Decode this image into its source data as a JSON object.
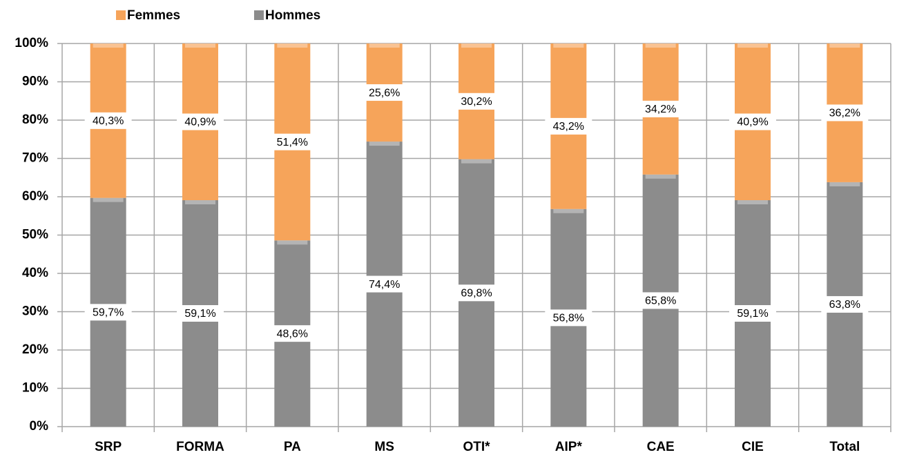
{
  "chart_data": {
    "type": "stacked_bar",
    "categories": [
      "SRP",
      "FORMA",
      "PA",
      "MS",
      "OTI*",
      "AIP*",
      "CAE",
      "CIE",
      "Total"
    ],
    "series": [
      {
        "name": "Hommes",
        "color": "#8c8c8c",
        "values": [
          59.7,
          59.1,
          48.6,
          74.4,
          69.8,
          56.8,
          65.8,
          59.1,
          63.8
        ],
        "value_labels": [
          "59,7%",
          "59,1%",
          "48,6%",
          "74,4%",
          "69,8%",
          "56,8%",
          "65,8%",
          "59,1%",
          "63,8%"
        ]
      },
      {
        "name": "Femmes",
        "color": "#f6a45a",
        "values": [
          40.3,
          40.9,
          51.4,
          25.6,
          30.2,
          43.2,
          34.2,
          40.9,
          36.2
        ],
        "value_labels": [
          "40,3%",
          "40,9%",
          "51,4%",
          "25,6%",
          "30,2%",
          "43,2%",
          "34,2%",
          "40,9%",
          "36,2%"
        ]
      }
    ],
    "ylim": [
      0,
      100
    ],
    "yticks": [
      {
        "value": 0,
        "label": "0%"
      },
      {
        "value": 10,
        "label": "10%"
      },
      {
        "value": 20,
        "label": "20%"
      },
      {
        "value": 30,
        "label": "30%"
      },
      {
        "value": 40,
        "label": "40%"
      },
      {
        "value": 50,
        "label": "50%"
      },
      {
        "value": 60,
        "label": "60%"
      },
      {
        "value": 70,
        "label": "70%"
      },
      {
        "value": 80,
        "label": "80%"
      },
      {
        "value": 90,
        "label": "90%"
      },
      {
        "value": 100,
        "label": "100%"
      }
    ],
    "grid": true,
    "legend": "top"
  }
}
